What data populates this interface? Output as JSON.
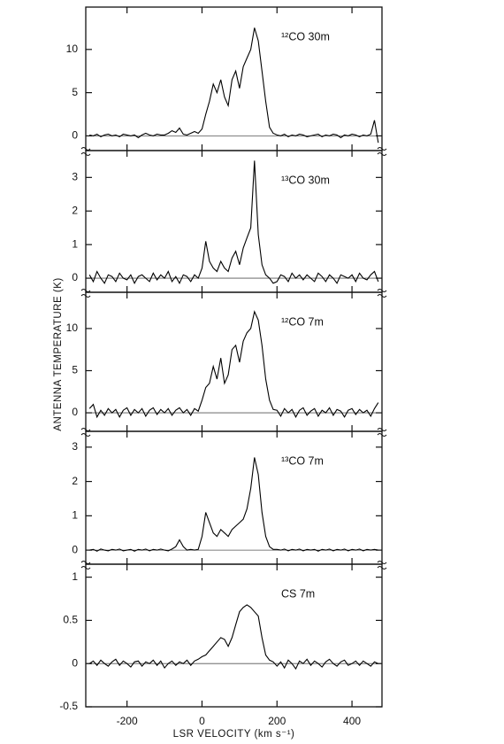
{
  "y_label": "ANTENNA TEMPERATURE (K)",
  "chart_data": [
    {
      "type": "line",
      "label": "¹²CO 30m",
      "color": "#000000",
      "xlim": [
        -310,
        480
      ],
      "ylim": [
        -1.7,
        14.9
      ],
      "yticks": [
        0,
        5,
        10
      ],
      "x": [
        -300,
        -290,
        -280,
        -270,
        -260,
        -250,
        -240,
        -230,
        -220,
        -210,
        -200,
        -190,
        -180,
        -170,
        -160,
        -150,
        -140,
        -130,
        -120,
        -110,
        -100,
        -90,
        -80,
        -70,
        -60,
        -50,
        -40,
        -30,
        -20,
        -10,
        0,
        10,
        20,
        30,
        40,
        50,
        60,
        70,
        80,
        90,
        100,
        110,
        120,
        130,
        140,
        150,
        160,
        170,
        180,
        190,
        200,
        210,
        220,
        230,
        240,
        250,
        260,
        270,
        280,
        290,
        300,
        310,
        320,
        330,
        340,
        350,
        360,
        370,
        380,
        390,
        400,
        410,
        420,
        430,
        440,
        450,
        460,
        470
      ],
      "values": [
        0.1,
        0,
        0.2,
        -0.1,
        0.1,
        0.2,
        0,
        0.1,
        -0.1,
        0.2,
        0.1,
        0,
        0.1,
        -0.2,
        0.1,
        0.3,
        0.1,
        0,
        0.2,
        0.1,
        0.1,
        0.3,
        0.6,
        0.4,
        0.9,
        0.2,
        0.1,
        0.3,
        0.5,
        0.3,
        0.8,
        2.5,
        4,
        6,
        5,
        6.5,
        4.5,
        3.5,
        6.5,
        7.5,
        5.5,
        8,
        9,
        10,
        12.5,
        11,
        7.5,
        4,
        1,
        0.3,
        0.1,
        0,
        0.2,
        -0.1,
        0.1,
        0,
        0.2,
        0.1,
        -0.1,
        0,
        0.1,
        0.2,
        -0.1,
        0.1,
        0,
        0.2,
        0.1,
        -0.2,
        0.1,
        0,
        0.2,
        0.1,
        -0.1,
        0.1,
        0,
        0.2,
        1.8,
        -0.8
      ]
    },
    {
      "type": "line",
      "label": "¹³CO 30m",
      "color": "#000000",
      "xlim": [
        -310,
        480
      ],
      "ylim": [
        -0.42,
        3.8
      ],
      "yticks": [
        0,
        1,
        2,
        3
      ],
      "x": [
        -300,
        -290,
        -280,
        -270,
        -260,
        -250,
        -240,
        -230,
        -220,
        -210,
        -200,
        -190,
        -180,
        -170,
        -160,
        -150,
        -140,
        -130,
        -120,
        -110,
        -100,
        -90,
        -80,
        -70,
        -60,
        -50,
        -40,
        -30,
        -20,
        -10,
        0,
        10,
        20,
        30,
        40,
        50,
        60,
        70,
        80,
        90,
        100,
        110,
        120,
        130,
        140,
        150,
        160,
        170,
        180,
        190,
        200,
        210,
        220,
        230,
        240,
        250,
        260,
        270,
        280,
        290,
        300,
        310,
        320,
        330,
        340,
        350,
        360,
        370,
        380,
        390,
        400,
        410,
        420,
        430,
        440,
        450,
        460,
        470
      ],
      "values": [
        0.1,
        -0.1,
        0.2,
        0,
        -0.15,
        0.1,
        0.05,
        -0.1,
        0.15,
        0,
        -0.05,
        0.1,
        -0.15,
        0.05,
        0.1,
        0,
        -0.1,
        0.15,
        -0.05,
        0.1,
        0,
        0.2,
        -0.1,
        0.05,
        -0.15,
        0.1,
        0.05,
        -0.1,
        0.1,
        0,
        0.3,
        1.1,
        0.5,
        0.3,
        0.2,
        0.5,
        0.3,
        0.2,
        0.6,
        0.8,
        0.4,
        0.9,
        1.2,
        1.5,
        3.5,
        1.3,
        0.4,
        0.1,
        0,
        -0.15,
        -0.1,
        0.1,
        0.05,
        -0.1,
        0.15,
        0,
        0.1,
        -0.05,
        0.1,
        0,
        -0.1,
        0.15,
        0.05,
        -0.1,
        0.1,
        0,
        -0.15,
        0.1,
        0.05,
        0,
        0.1,
        -0.1,
        0.15,
        0,
        -0.05,
        0.1,
        0.2,
        -0.1
      ]
    },
    {
      "type": "line",
      "label": "¹²CO 7m",
      "color": "#000000",
      "xlim": [
        -310,
        480
      ],
      "ylim": [
        -2.2,
        14.3
      ],
      "yticks": [
        0,
        5,
        10
      ],
      "x": [
        -300,
        -290,
        -280,
        -270,
        -260,
        -250,
        -240,
        -230,
        -220,
        -210,
        -200,
        -190,
        -180,
        -170,
        -160,
        -150,
        -140,
        -130,
        -120,
        -110,
        -100,
        -90,
        -80,
        -70,
        -60,
        -50,
        -40,
        -30,
        -20,
        -10,
        0,
        10,
        20,
        30,
        40,
        50,
        60,
        70,
        80,
        90,
        100,
        110,
        120,
        130,
        140,
        150,
        160,
        170,
        180,
        190,
        200,
        210,
        220,
        230,
        240,
        250,
        260,
        270,
        280,
        290,
        300,
        310,
        320,
        330,
        340,
        350,
        360,
        370,
        380,
        390,
        400,
        410,
        420,
        430,
        440,
        450,
        460,
        470
      ],
      "values": [
        0.5,
        1,
        -0.5,
        0.3,
        -0.3,
        0.5,
        0,
        0.4,
        -0.5,
        0.3,
        0.6,
        -0.3,
        0.4,
        0,
        0.5,
        -0.4,
        0.3,
        0.6,
        -0.2,
        0.4,
        0,
        0.5,
        -0.3,
        0.3,
        0.6,
        0,
        0.4,
        -0.3,
        0.5,
        0.2,
        1.5,
        3,
        3.5,
        5.5,
        4,
        6.5,
        3.5,
        4.5,
        7.5,
        8,
        6,
        8.5,
        9.5,
        10,
        12,
        11,
        8,
        4,
        1.5,
        0.4,
        0.3,
        -0.4,
        0.5,
        0,
        0.4,
        -0.5,
        0.3,
        0.6,
        -0.3,
        0.2,
        0.5,
        -0.4,
        0.3,
        0,
        0.6,
        -0.3,
        0.4,
        0.2,
        -0.5,
        0.3,
        0.5,
        -0.2,
        0.4,
        0,
        0.3,
        -0.4,
        0.5,
        1.2
      ]
    },
    {
      "type": "line",
      "label": "¹³CO 7m",
      "color": "#000000",
      "xlim": [
        -310,
        480
      ],
      "ylim": [
        -0.41,
        3.46
      ],
      "yticks": [
        0,
        1,
        2,
        3
      ],
      "x": [
        -300,
        -290,
        -280,
        -270,
        -260,
        -250,
        -240,
        -230,
        -220,
        -210,
        -200,
        -190,
        -180,
        -170,
        -160,
        -150,
        -140,
        -130,
        -120,
        -110,
        -100,
        -90,
        -80,
        -70,
        -60,
        -50,
        -40,
        -30,
        -20,
        -10,
        0,
        10,
        20,
        30,
        40,
        50,
        60,
        70,
        80,
        90,
        100,
        110,
        120,
        130,
        140,
        150,
        160,
        170,
        180,
        190,
        200,
        210,
        220,
        230,
        240,
        250,
        260,
        270,
        280,
        290,
        300,
        310,
        320,
        330,
        340,
        350,
        360,
        370,
        380,
        390,
        400,
        410,
        420,
        430,
        440,
        450,
        460,
        470
      ],
      "values": [
        0,
        0.02,
        -0.03,
        0.03,
        0,
        -0.02,
        0.02,
        0,
        0.03,
        -0.02,
        0,
        0.02,
        -0.03,
        0.02,
        0,
        0.03,
        -0.02,
        0.02,
        0,
        0.03,
        0,
        -0.02,
        0.03,
        0.1,
        0.3,
        0.1,
        0,
        0.02,
        0,
        0.02,
        0.4,
        1.1,
        0.8,
        0.5,
        0.4,
        0.6,
        0.5,
        0.4,
        0.6,
        0.7,
        0.8,
        0.9,
        1.2,
        1.8,
        2.7,
        2.2,
        1.1,
        0.4,
        0.1,
        0.02,
        0.02,
        0,
        0.03,
        -0.02,
        0.02,
        0,
        0.03,
        -0.02,
        0.02,
        0,
        0.02,
        -0.03,
        0.02,
        0,
        0.03,
        -0.02,
        0.02,
        0,
        0.03,
        -0.02,
        0.02,
        0,
        0.03,
        -0.02,
        0.02,
        0,
        0.02,
        0
      ]
    },
    {
      "type": "line",
      "label": "CS 7m",
      "color": "#000000",
      "xlim": [
        -310,
        480
      ],
      "ylim": [
        -0.5,
        1.15
      ],
      "yticks": [
        -0.5,
        0,
        0.5,
        1
      ],
      "xticks": [
        -200,
        0,
        200,
        400
      ],
      "x_label": "LSR VELOCITY (km s⁻¹)",
      "x": [
        -300,
        -290,
        -280,
        -270,
        -260,
        -250,
        -240,
        -230,
        -220,
        -210,
        -200,
        -190,
        -180,
        -170,
        -160,
        -150,
        -140,
        -130,
        -120,
        -110,
        -100,
        -90,
        -80,
        -70,
        -60,
        -50,
        -40,
        -30,
        -20,
        -10,
        0,
        10,
        20,
        30,
        40,
        50,
        60,
        70,
        80,
        90,
        100,
        110,
        120,
        130,
        140,
        150,
        160,
        170,
        180,
        190,
        200,
        210,
        220,
        230,
        240,
        250,
        260,
        270,
        280,
        290,
        300,
        310,
        320,
        330,
        340,
        350,
        360,
        370,
        380,
        390,
        400,
        410,
        420,
        430,
        440,
        450,
        460,
        470
      ],
      "values": [
        0,
        0.03,
        -0.02,
        0.04,
        0,
        -0.03,
        0.02,
        0.05,
        -0.02,
        0.03,
        0,
        -0.04,
        0.02,
        0.03,
        -0.03,
        0.02,
        0,
        0.04,
        -0.02,
        0.03,
        -0.05,
        0,
        0.03,
        -0.02,
        0.02,
        0,
        0.04,
        -0.02,
        0.03,
        0.05,
        0.08,
        0.1,
        0.15,
        0.2,
        0.25,
        0.3,
        0.28,
        0.2,
        0.3,
        0.45,
        0.6,
        0.65,
        0.68,
        0.65,
        0.6,
        0.55,
        0.3,
        0.1,
        0.04,
        0.02,
        -0.03,
        0.02,
        -0.05,
        0.04,
        0,
        -0.06,
        0.03,
        0,
        0.05,
        -0.02,
        0.03,
        0,
        -0.04,
        0.02,
        0.05,
        0,
        -0.03,
        0.02,
        0.04,
        -0.02,
        0,
        0.03,
        -0.02,
        0.03,
        0,
        -0.03,
        0.02,
        0
      ]
    }
  ]
}
